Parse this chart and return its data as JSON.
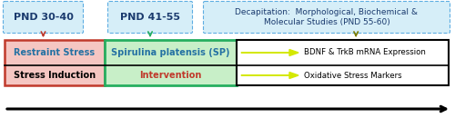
{
  "fig_width": 5.0,
  "fig_height": 1.3,
  "dpi": 100,
  "bg_color": "#ffffff",
  "label_pnd3040": "PND 30-40",
  "label_pnd4155": "PND 41-55",
  "label_decap": "Decapitation:  Morphological, Biochemical &\nMolecular Studies (PND 55-60)",
  "box1_text": "Restraint Stress",
  "box2_text": "Spirulina platensis (SP)",
  "label_stress": "Stress Induction",
  "label_intervention": "Intervention",
  "label_bdnf": "BDNF & TrkB mRNA Expression",
  "label_oxidative": "Oxidative Stress Markers",
  "box1_facecolor": "#f5c6c2",
  "box1_edgecolor": "#c0392b",
  "box2_facecolor": "#c8efc8",
  "box2_edgecolor": "#27ae60",
  "box3_facecolor": "#ffffff",
  "box3_edgecolor": "#000000",
  "dash_box_edgecolor": "#5dade2",
  "dash_box_facecolor": "#d6eef8",
  "connector_color_red": "#c0392b",
  "connector_color_green": "#27ae60",
  "connector_color_olive": "#7d7d00",
  "text_color_blue": "#2471a3",
  "text_color_red": "#c0392b",
  "text_color_black": "#000000",
  "text_color_dark": "#1a1a2e",
  "text_color_navy": "#1a3a6e",
  "title_fontsize": 8.0,
  "label_fontsize": 7.0,
  "small_fontsize": 6.2,
  "decap_fontsize": 6.5
}
